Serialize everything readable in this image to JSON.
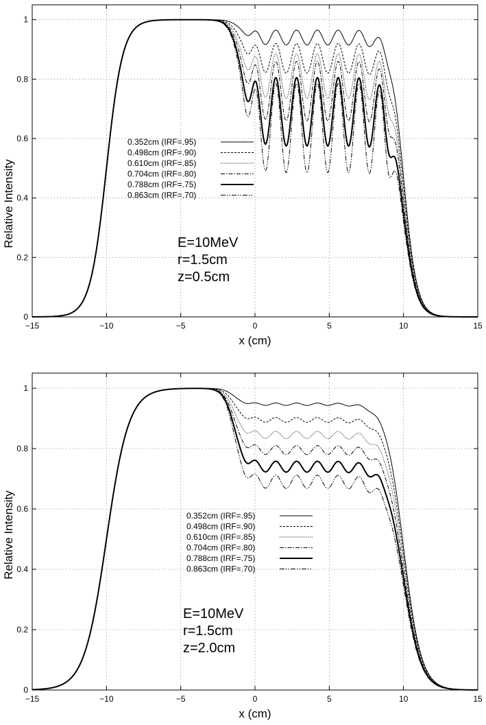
{
  "chart_data": [
    {
      "type": "line",
      "title": "",
      "xlabel": "x (cm)",
      "ylabel": "Relative Intensity",
      "xlim": [
        -15,
        15
      ],
      "ylim": [
        0,
        1.05
      ],
      "xticks": [
        -15,
        -10,
        -5,
        0,
        5,
        10,
        15
      ],
      "yticks": [
        0,
        0.2,
        0.4,
        0.6,
        0.8,
        1
      ],
      "grid": true,
      "legend_placement": "center-left",
      "annotations": [
        "E=10MeV",
        "r=1.5cm",
        "z=0.5cm"
      ],
      "profile": {
        "left_half_width": 10.0,
        "left_edge_width": 0.55,
        "right_half_width": 10.0,
        "right_edge_width": 0.45,
        "dip_start": -1.6,
        "plateau_end": 9.3,
        "ripple_period": 1.4,
        "ripple_phase_x": 0.0
      },
      "series": [
        {
          "name": "0.352cm (IRF=.95)",
          "style": "solid-thin",
          "plateau_mean": 0.94,
          "ripple_amplitude": 0.025
        },
        {
          "name": "0.498cm (IRF=.90)",
          "style": "dashed-fine",
          "plateau_mean": 0.87,
          "ripple_amplitude": 0.05
        },
        {
          "name": "0.610cm (IRF=.85)",
          "style": "dotted",
          "plateau_mean": 0.81,
          "ripple_amplitude": 0.075
        },
        {
          "name": "0.704cm (IRF=.80)",
          "style": "dash-dot",
          "plateau_mean": 0.76,
          "ripple_amplitude": 0.1
        },
        {
          "name": "0.788cm (IRF=.75)",
          "style": "solid-thick",
          "plateau_mean": 0.69,
          "ripple_amplitude": 0.115
        },
        {
          "name": "0.863cm (IRF=.70)",
          "style": "dash-dot-dot",
          "plateau_mean": 0.635,
          "ripple_amplitude": 0.15
        }
      ]
    },
    {
      "type": "line",
      "title": "",
      "xlabel": "x (cm)",
      "ylabel": "Relative Intensity",
      "xlim": [
        -15,
        15
      ],
      "ylim": [
        0,
        1.05
      ],
      "xticks": [
        -15,
        -10,
        -5,
        0,
        5,
        10,
        15
      ],
      "yticks": [
        0,
        0.2,
        0.4,
        0.6,
        0.8,
        1
      ],
      "grid": true,
      "legend_placement": "center",
      "annotations": [
        "E=10MeV",
        "r=1.5cm",
        "z=2.0cm"
      ],
      "profile": {
        "left_half_width": 10.0,
        "left_edge_width": 0.75,
        "right_half_width": 10.0,
        "right_edge_width": 0.6,
        "dip_start": -2.0,
        "plateau_end": 8.6,
        "ripple_period": 1.4,
        "ripple_phase_x": 0.0
      },
      "series": [
        {
          "name": "0.352cm (IRF=.95)",
          "style": "solid-thin",
          "plateau_mean": 0.947,
          "ripple_amplitude": 0.004
        },
        {
          "name": "0.498cm (IRF=.90)",
          "style": "dashed-fine",
          "plateau_mean": 0.895,
          "ripple_amplitude": 0.008
        },
        {
          "name": "0.610cm (IRF=.85)",
          "style": "dotted",
          "plateau_mean": 0.845,
          "ripple_amplitude": 0.012
        },
        {
          "name": "0.704cm (IRF=.80)",
          "style": "dash-dot",
          "plateau_mean": 0.795,
          "ripple_amplitude": 0.015
        },
        {
          "name": "0.788cm (IRF=.75)",
          "style": "solid-thick",
          "plateau_mean": 0.74,
          "ripple_amplitude": 0.018
        },
        {
          "name": "0.863cm (IRF=.70)",
          "style": "dash-dot-dot",
          "plateau_mean": 0.69,
          "ripple_amplitude": 0.022
        }
      ]
    }
  ]
}
